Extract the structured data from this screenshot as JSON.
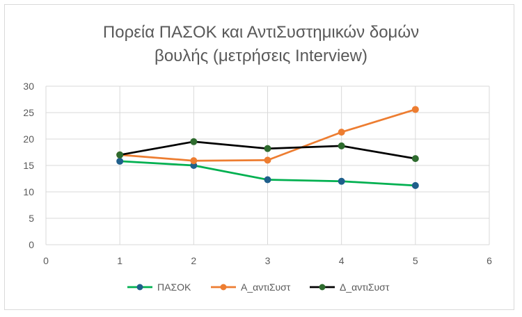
{
  "chart_data": {
    "type": "scatter",
    "mode": "lines+markers",
    "title_line1": "Πορεία ΠΑΣΟΚ και ΑντιΣυστημικών δομών",
    "title_line2": "βουλής (μετρήσεις Interview)",
    "xlabel": "",
    "ylabel": "",
    "xlim": [
      0,
      6
    ],
    "ylim": [
      0,
      30
    ],
    "xticks": [
      0,
      1,
      2,
      3,
      4,
      5,
      6
    ],
    "yticks": [
      0,
      5,
      10,
      15,
      20,
      25,
      30
    ],
    "grid": true,
    "legend_position": "bottom",
    "series": [
      {
        "name": "ΠΑΣΟΚ",
        "color": "#00b050",
        "marker_color": "#1f5f8b",
        "x": [
          1,
          2,
          3,
          4,
          5
        ],
        "y": [
          15.8,
          15.0,
          12.3,
          12.0,
          11.2
        ]
      },
      {
        "name": "Α_αντιΣυστ",
        "color": "#ed7d31",
        "marker_color": "#ed7d31",
        "x": [
          1,
          2,
          3,
          4,
          5
        ],
        "y": [
          17.0,
          15.9,
          16.0,
          21.3,
          25.6
        ]
      },
      {
        "name": "Δ_αντιΣυστ",
        "color": "#000000",
        "marker_color": "#2e6b2e",
        "x": [
          1,
          2,
          3,
          4,
          5
        ],
        "y": [
          17.0,
          19.5,
          18.2,
          18.7,
          16.3
        ]
      }
    ]
  }
}
